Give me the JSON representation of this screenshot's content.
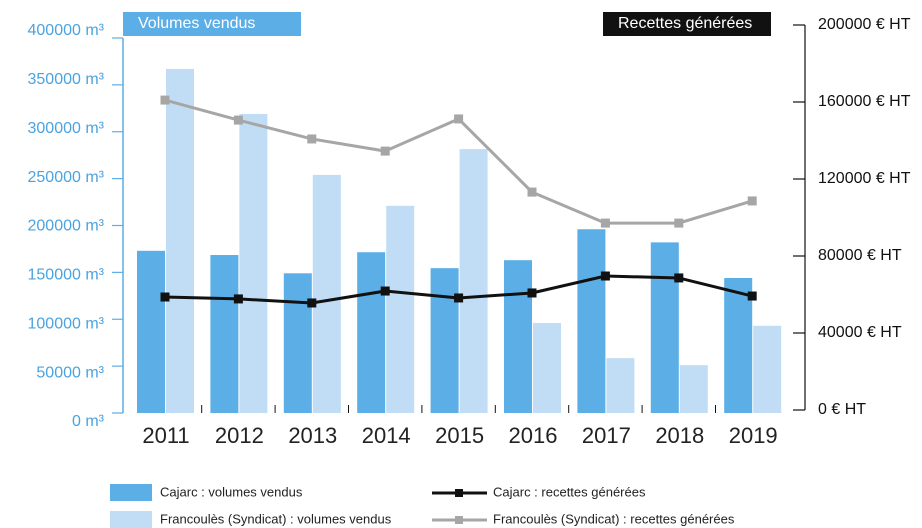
{
  "chart_data": {
    "type": "bar_line",
    "title": "Volumes vendus",
    "y2_title": "Recettes générées",
    "categories": [
      "2011",
      "2012",
      "2013",
      "2014",
      "2015",
      "2016",
      "2017",
      "2018",
      "2019"
    ],
    "series": [
      {
        "name": "Cajarc : volumes vendus",
        "kind": "bar",
        "color": "#5caee6",
        "values": [
          173000,
          168500,
          149000,
          171500,
          154500,
          163000,
          196000,
          182000,
          144000
        ]
      },
      {
        "name": "Francoulès (Syndicat) : volumes vendus",
        "kind": "bar",
        "color": "#c0ddf5",
        "values": [
          367000,
          319000,
          254000,
          221000,
          281500,
          96000,
          58500,
          51000,
          93000
        ]
      },
      {
        "name": "Cajarc : recettes générées",
        "kind": "line",
        "axis": "y2",
        "color": "#111111",
        "values": [
          58700,
          57700,
          55600,
          61800,
          58200,
          60800,
          69600,
          68600,
          59200
        ]
      },
      {
        "name": "Francoulès (Syndicat) : recettes générées",
        "kind": "line",
        "axis": "y2",
        "color": "#a6a6a6",
        "values": [
          161000,
          150600,
          140800,
          134500,
          151200,
          113200,
          97100,
          97100,
          108600
        ]
      }
    ],
    "ylim": [
      0,
      400000
    ],
    "yticks": [
      {
        "value": 0,
        "label": "0 m³"
      },
      {
        "value": 50000,
        "label": "50000 m³"
      },
      {
        "value": 100000,
        "label": "100000 m³"
      },
      {
        "value": 150000,
        "label": "150000 m³"
      },
      {
        "value": 200000,
        "label": "200000 m³"
      },
      {
        "value": 250000,
        "label": "250000 m³"
      },
      {
        "value": 300000,
        "label": "300000 m³"
      },
      {
        "value": 350000,
        "label": "350000 m³"
      },
      {
        "value": 400000,
        "label": "400000 m³"
      }
    ],
    "y2lim": [
      0,
      200000
    ],
    "y2ticks": [
      {
        "value": 0,
        "label": "0 € HT"
      },
      {
        "value": 40000,
        "label": "40000 € HT"
      },
      {
        "value": 80000,
        "label": "80000 € HT"
      },
      {
        "value": 120000,
        "label": "120000 € HT"
      },
      {
        "value": 160000,
        "label": "160000 € HT"
      },
      {
        "value": 200000,
        "label": "200000 € HT"
      }
    ]
  }
}
